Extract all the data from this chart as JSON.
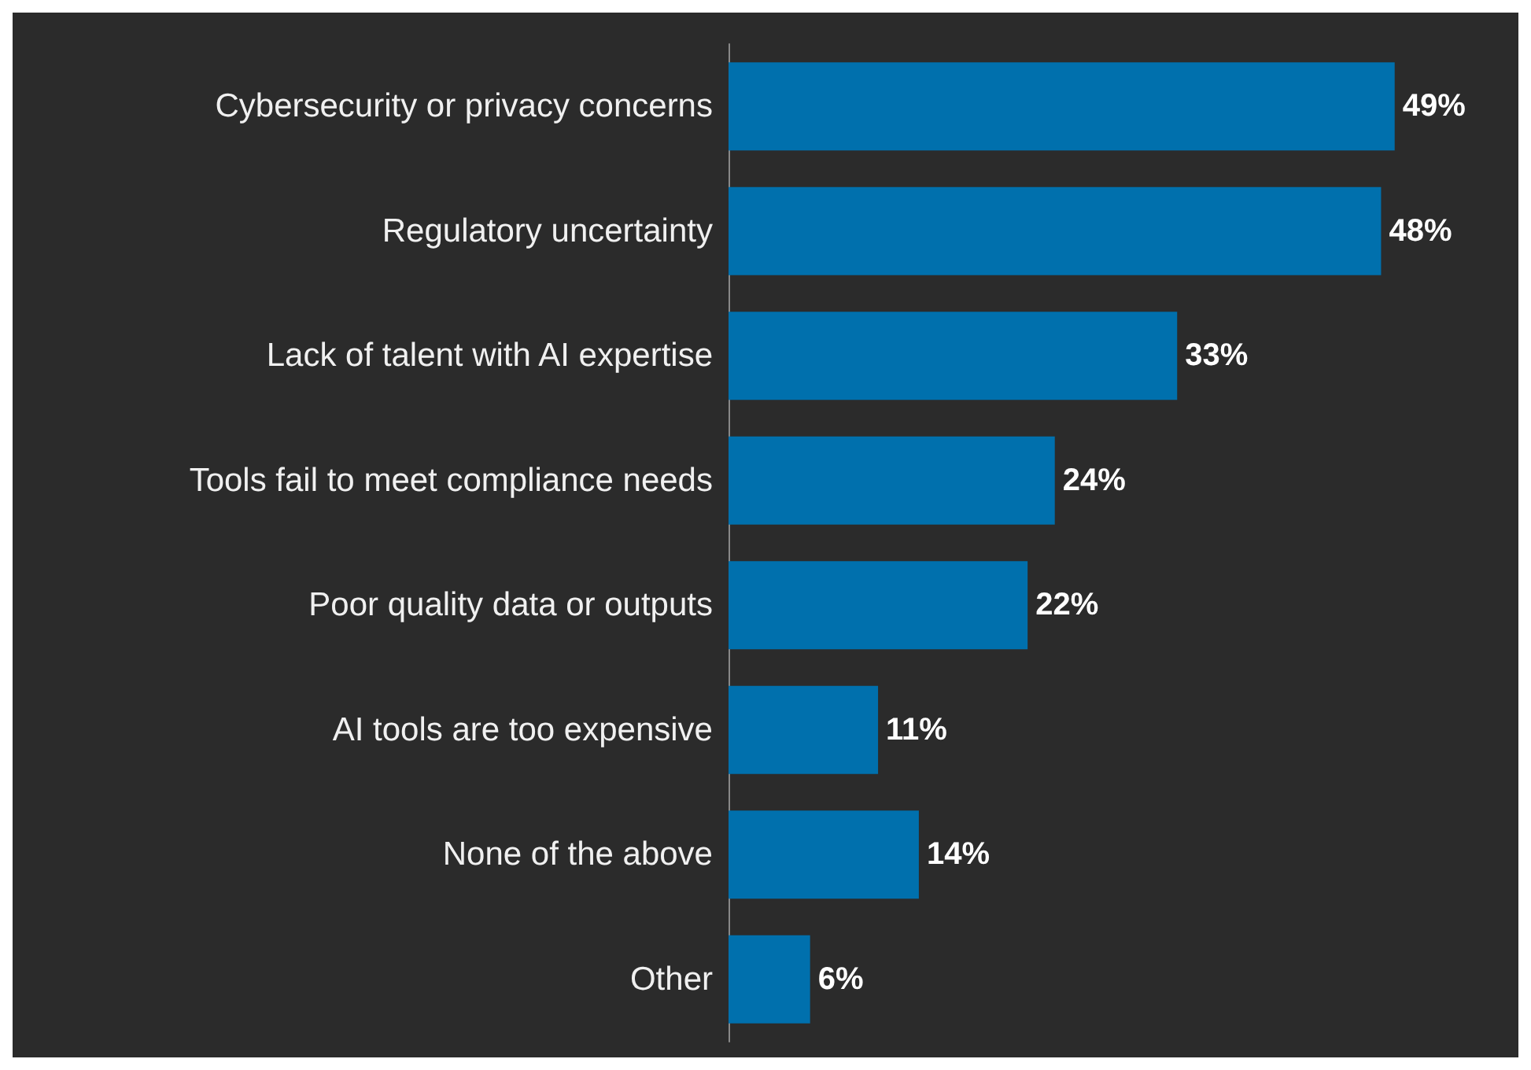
{
  "chart_data": {
    "type": "bar",
    "orientation": "horizontal",
    "categories": [
      "Cybersecurity or privacy concerns",
      "Regulatory uncertainty",
      "Lack of talent with AI expertise",
      "Tools fail to meet compliance needs",
      "Poor quality data or outputs",
      "AI tools are too expensive",
      "None of the above",
      "Other"
    ],
    "values": [
      49,
      48,
      33,
      24,
      22,
      11,
      14,
      6
    ],
    "value_labels": [
      "49%",
      "48%",
      "33%",
      "24%",
      "22%",
      "11%",
      "14%",
      "6%"
    ],
    "color": "#0070ad"
  }
}
